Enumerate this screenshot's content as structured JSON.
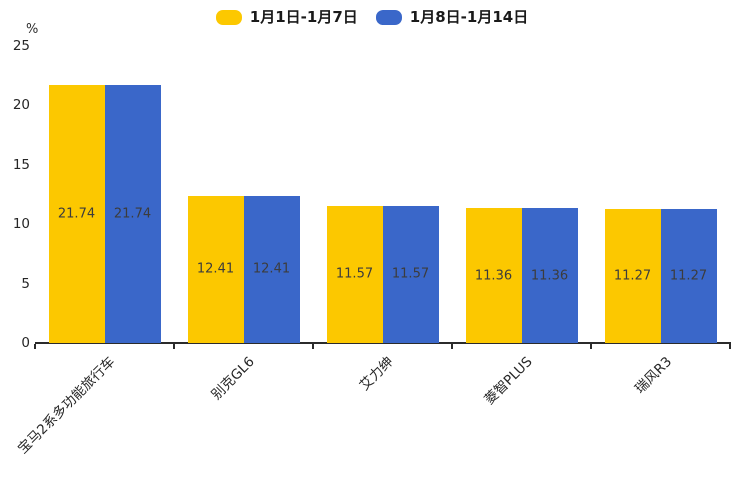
{
  "chart_data": {
    "type": "bar",
    "title": "",
    "xlabel": "",
    "ylabel": "%",
    "categories": [
      "宝马2系多功能旅行车",
      "别克GL6",
      "艾力绅",
      "菱智PLUS",
      "瑞风R3"
    ],
    "series": [
      {
        "name": "1月1日-1月7日",
        "color": "#FCC800",
        "values": [
          21.74,
          12.41,
          11.57,
          11.36,
          11.27
        ]
      },
      {
        "name": "1月8日-1月14日",
        "color": "#3A67C9",
        "values": [
          21.74,
          12.41,
          11.57,
          11.36,
          11.27
        ]
      }
    ],
    "ylim": [
      0,
      25
    ],
    "yticks": [
      0,
      5,
      10,
      15,
      20,
      25
    ],
    "grid": false,
    "legend_position": "top-center",
    "value_labels": "inside-center",
    "value_label_format": "two-decimals",
    "x_label_rotation_deg": 45
  }
}
